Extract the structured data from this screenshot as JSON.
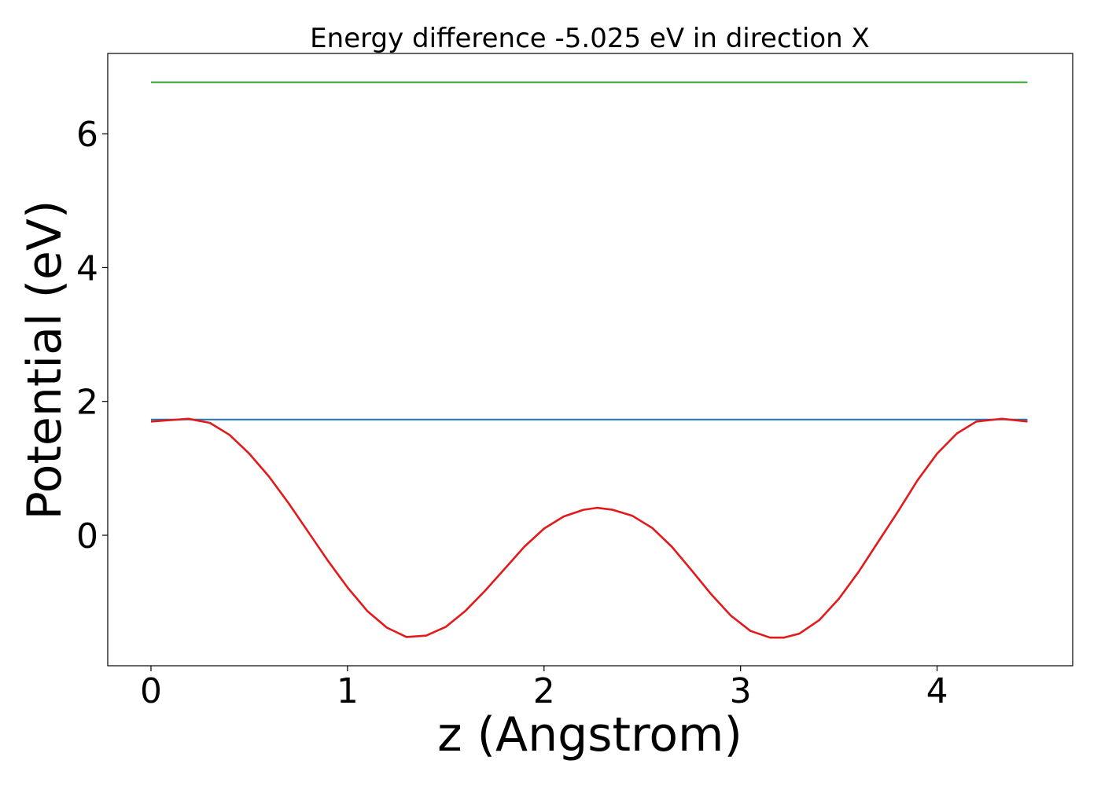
{
  "chart_data": {
    "type": "line",
    "title": "Energy difference -5.025 eV in direction X",
    "xlabel": "z (Angstrom)",
    "ylabel": "Potential (eV)",
    "xlim": [
      -0.22,
      4.69
    ],
    "ylim": [
      -1.95,
      7.2
    ],
    "xticks": [
      0,
      1,
      2,
      3,
      4
    ],
    "xtick_labels": [
      "0",
      "1",
      "2",
      "3",
      "4"
    ],
    "yticks": [
      0,
      2,
      4,
      6
    ],
    "ytick_labels": [
      "0",
      "2",
      "4",
      "6"
    ],
    "grid": false,
    "legend": "none",
    "series": [
      {
        "color": "#2ca02c",
        "x": [
          0,
          4.46
        ],
        "y": [
          6.77,
          6.77
        ]
      },
      {
        "color": "#1f77b4",
        "x": [
          0,
          4.46
        ],
        "y": [
          1.73,
          1.73
        ]
      },
      {
        "color": "#e31a1c",
        "x": [
          0,
          0.1,
          0.19,
          0.3,
          0.4,
          0.5,
          0.6,
          0.7,
          0.8,
          0.9,
          1.0,
          1.1,
          1.2,
          1.3,
          1.4,
          1.5,
          1.6,
          1.7,
          1.8,
          1.9,
          2.0,
          2.1,
          2.2,
          2.27,
          2.35,
          2.45,
          2.55,
          2.65,
          2.75,
          2.85,
          2.95,
          3.05,
          3.15,
          3.22,
          3.3,
          3.4,
          3.5,
          3.6,
          3.7,
          3.8,
          3.9,
          4.0,
          4.1,
          4.2,
          4.33,
          4.46
        ],
        "y": [
          1.7,
          1.72,
          1.74,
          1.68,
          1.5,
          1.22,
          0.88,
          0.48,
          0.05,
          -0.38,
          -0.78,
          -1.13,
          -1.38,
          -1.52,
          -1.5,
          -1.37,
          -1.13,
          -0.83,
          -0.5,
          -0.17,
          0.1,
          0.28,
          0.38,
          0.41,
          0.38,
          0.29,
          0.11,
          -0.17,
          -0.52,
          -0.88,
          -1.2,
          -1.43,
          -1.53,
          -1.53,
          -1.47,
          -1.27,
          -0.95,
          -0.55,
          -0.1,
          0.35,
          0.82,
          1.22,
          1.52,
          1.7,
          1.74,
          1.7
        ]
      }
    ]
  }
}
